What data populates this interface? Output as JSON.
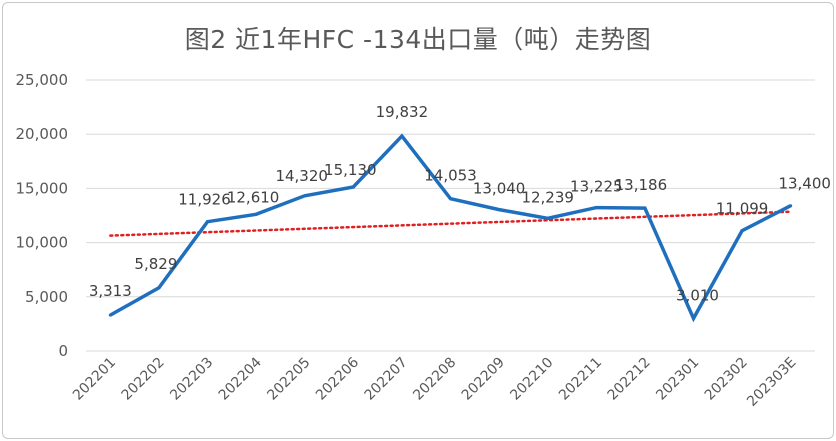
{
  "chart_data": {
    "type": "line",
    "title": "图2  近1年HFC -134出口量（吨）走势图",
    "categories": [
      "202201",
      "202202",
      "202203",
      "202204",
      "202205",
      "202206",
      "202207",
      "202208",
      "202209",
      "202210",
      "202211",
      "202212",
      "202301",
      "202302",
      "202303E"
    ],
    "series": [
      {
        "values": [
          3313,
          5829,
          11926,
          12610,
          14320,
          15130,
          19832,
          14053,
          13040,
          12239,
          13225,
          13186,
          3010,
          11099,
          13400
        ],
        "labels": [
          "3,313",
          "5,829",
          "11,926",
          "12,610",
          "14,320",
          "15,130",
          "19,832",
          "14,053",
          "13,040",
          "12,239",
          "13,225",
          "13,186",
          "3,010",
          "11,099",
          "13,400"
        ],
        "color": "#1f6fbf"
      }
    ],
    "trendline": {
      "type": "linear",
      "color": "#e02020",
      "style": "dotted"
    },
    "ylim": [
      0,
      25000
    ],
    "yticks": [
      0,
      5000,
      10000,
      15000,
      20000,
      25000
    ],
    "ytick_labels": [
      "0",
      "5,000",
      "10,000",
      "15,000",
      "20,000",
      "25,000"
    ],
    "grid": true,
    "gridline_color": "#d9d9d9"
  }
}
